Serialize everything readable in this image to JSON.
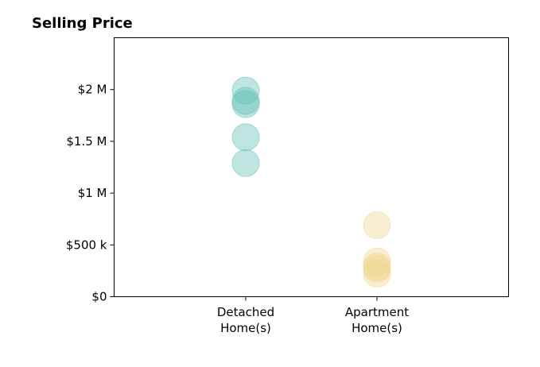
{
  "chart_data": {
    "type": "scatter",
    "title": "Selling Price",
    "xlabel": "",
    "ylabel": "",
    "categories": [
      "Detached\nHome(s)",
      "Apartment\nHome(s)"
    ],
    "ylim": [
      0,
      2500000
    ],
    "y_ticks": [
      0,
      500000,
      1000000,
      1500000,
      2000000
    ],
    "y_tick_labels": [
      "$0",
      "$500 k",
      "$1 M",
      "$1.5 M",
      "$2 M"
    ],
    "grid": false,
    "series": [
      {
        "category": "Detached\nHome(s)",
        "color": "#5fbfb4",
        "values": [
          1990000,
          1890000,
          1860000,
          1540000,
          1290000
        ]
      },
      {
        "category": "Apartment\nHome(s)",
        "color": "#f0d58c",
        "values": [
          690000,
          340000,
          290000,
          270000,
          220000
        ]
      }
    ]
  }
}
